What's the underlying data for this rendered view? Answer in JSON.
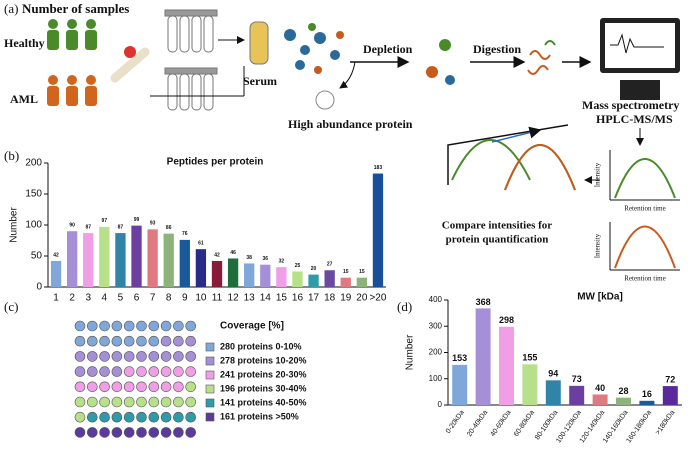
{
  "diagram": {
    "label": "(a)",
    "number_of_samples": "Number of samples",
    "healthy": "Healthy",
    "aml": "AML",
    "serum": "Serum",
    "depletion": "Depletion",
    "digestion": "Digestion",
    "high_abundance": "High abundance protein",
    "mass_spec": "Mass spectrometry",
    "hplc": "HPLC-MS/MS",
    "intensity": [
      "Intensity",
      "Intensity"
    ],
    "retention_time": [
      "Retention time",
      "Retention time"
    ],
    "compare": [
      "Compare intensities for",
      "protein quantification"
    ]
  },
  "chart_data": [
    {
      "type": "bar",
      "label": "(b)",
      "title": "Peptides per protein",
      "y_label": "Number",
      "categories": [
        "1",
        "2",
        "3",
        "4",
        "5",
        "6",
        "7",
        "8",
        "9",
        "10",
        "11",
        "12",
        "13",
        "14",
        "15",
        "16",
        "17",
        "18",
        "19",
        "20",
        ">20"
      ],
      "values": [
        42,
        90,
        87,
        97,
        87,
        99,
        93,
        86,
        76,
        61,
        42,
        46,
        38,
        36,
        32,
        25,
        20,
        27,
        15,
        15,
        183
      ],
      "colors": [
        "#7fa7d9",
        "#a58fd6",
        "#f09ee6",
        "#b8e08a",
        "#2f84a8",
        "#6a3fa0",
        "#e07a82",
        "#8bb37a",
        "#1a5a9a",
        "#2a2a8a",
        "#8a1a3a",
        "#1e6e3a",
        "#7fa7d9",
        "#a58fd6",
        "#f09ee6",
        "#b8e08a",
        "#2f9aa8",
        "#6a4aa0",
        "#e07a82",
        "#8bb37a",
        "#1a4f9a"
      ],
      "ylim": [
        0,
        200
      ],
      "yticks": [
        0,
        50,
        100,
        150,
        200
      ]
    },
    {
      "type": "waffle",
      "label": "(c)",
      "title": "Coverage [%]",
      "categories": [
        "280 proteins 0-10%",
        "278 proteins 10-20%",
        "241 proteins 20-30%",
        "196 proteins 30-40%",
        "141 proteins 40-50%",
        "161 proteins >50%"
      ],
      "values": [
        280,
        278,
        241,
        196,
        141,
        161
      ],
      "colors": [
        "#7fa7d9",
        "#a58fd6",
        "#f09ee6",
        "#b8e08a",
        "#2f9aa8",
        "#5a3a9a"
      ]
    },
    {
      "type": "bar",
      "label": "(d)",
      "title": "MW [kDa]",
      "y_label": "Number",
      "categories": [
        "0-20kDa",
        "20-40kDa",
        "40-60kDa",
        "60-80kDa",
        "80-100kDa",
        "100-120kDa",
        "120-140kDa",
        "140-160kDa",
        "160-180kDa",
        ">180kDa"
      ],
      "values": [
        153,
        368,
        298,
        155,
        94,
        73,
        40,
        28,
        16,
        72
      ],
      "colors": [
        "#7fa7d9",
        "#a58fd6",
        "#f09ee6",
        "#b8e08a",
        "#2f84a8",
        "#6a3fa0",
        "#e07a82",
        "#8bb37a",
        "#1a5a9a",
        "#5a2a9a"
      ],
      "ylim": [
        0,
        400
      ],
      "yticks": [
        0,
        100,
        200,
        300,
        400
      ]
    }
  ]
}
